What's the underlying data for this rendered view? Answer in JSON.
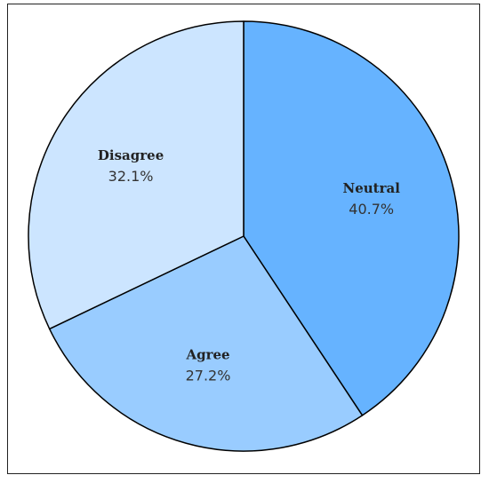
{
  "chart_data": {
    "type": "pie",
    "title": "",
    "slices": [
      {
        "label": "Neutral",
        "value": 40.7,
        "display": "40.7%",
        "color": "#66b3ff"
      },
      {
        "label": "Agree",
        "value": 27.2,
        "display": "27.2%",
        "color": "#99ccff"
      },
      {
        "label": "Disagree",
        "value": 32.1,
        "display": "32.1%",
        "color": "#cce5ff"
      }
    ],
    "start_angle": "12 o'clock",
    "direction": "clockwise",
    "edge_color": "#000000",
    "legend": "none"
  }
}
